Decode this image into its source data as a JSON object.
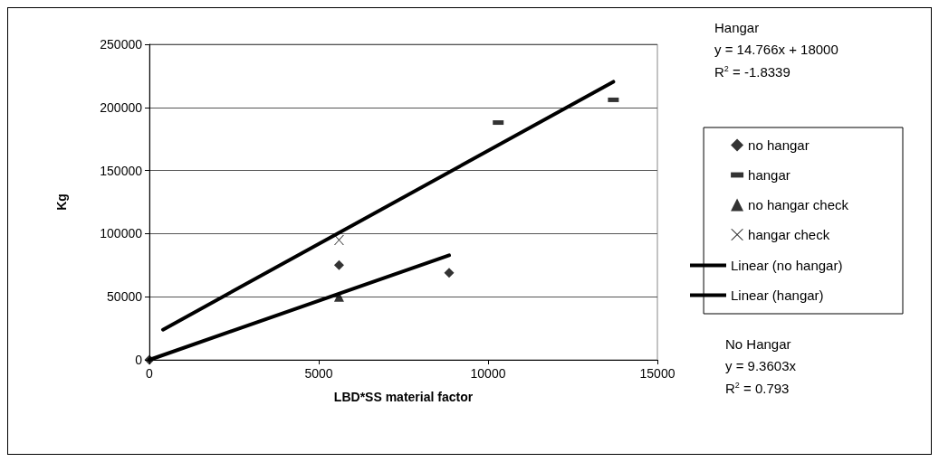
{
  "chart_data": {
    "type": "scatter",
    "xlabel": "LBD*SS material factor",
    "ylabel": "Kg",
    "xlim": [
      0,
      15000
    ],
    "xticks": [
      0,
      5000,
      10000,
      15000
    ],
    "ylim": [
      0,
      250000
    ],
    "yticks": [
      0,
      50000,
      100000,
      150000,
      200000,
      250000
    ],
    "grid": "y",
    "legend": "right",
    "series": [
      {
        "name": "no hangar",
        "marker": "diamond",
        "color": "#000000",
        "x": [
          0,
          5600,
          8850
        ],
        "values": [
          0,
          75000,
          69000
        ]
      },
      {
        "name": "hangar",
        "marker": "square",
        "color": "#000000",
        "x": [
          10300,
          13700
        ],
        "values": [
          188000,
          206000
        ]
      },
      {
        "name": "no hangar check",
        "marker": "triangle",
        "color": "#000000",
        "x": [
          5600
        ],
        "values": [
          50000
        ]
      },
      {
        "name": "hangar check",
        "marker": "cross",
        "color": "#000000",
        "x": [
          5600
        ],
        "values": [
          95000
        ]
      },
      {
        "name": "Linear (no hangar)",
        "type": "line",
        "marker": "none",
        "line_style": "solid",
        "color": "#000000",
        "x": [
          0,
          8850
        ],
        "values": [
          0,
          82800
        ]
      },
      {
        "name": "Linear (hangar)",
        "type": "line",
        "marker": "none",
        "line_style": "solid",
        "color": "#000000",
        "x": [
          400,
          13700
        ],
        "values": [
          23900,
          220300
        ]
      }
    ],
    "annotations": [
      "Hangar",
      "y = 14.766x + 18000",
      "R$^{2}$ = -1.8339",
      "No Hangar",
      "y = 9.3603x",
      "R$^{2}$ = 0.793"
    ]
  }
}
